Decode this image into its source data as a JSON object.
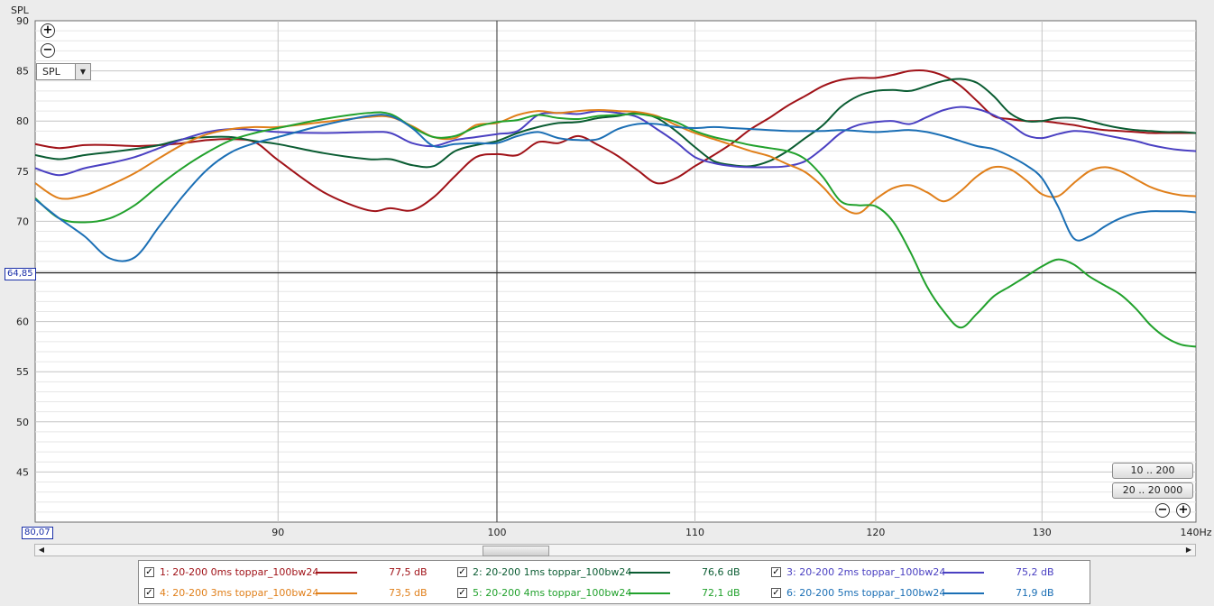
{
  "chart_data": {
    "type": "line",
    "ylabel": "SPL",
    "xlabel_unit": "Hz",
    "xlim": [
      80.07,
      140
    ],
    "ylim": [
      40,
      90
    ],
    "y_ticks": [
      45,
      50,
      55,
      60,
      65,
      70,
      75,
      80,
      85,
      90
    ],
    "y_tick_labels": [
      "45",
      "50",
      "55",
      "60",
      "",
      "70",
      "75",
      "80",
      "85",
      "90"
    ],
    "x_ticks": [
      90,
      100,
      110,
      120,
      130
    ],
    "x_end_label": "140Hz",
    "cursor_y": 64.85,
    "cursor_y_label": "64,85",
    "cursor_x": 100,
    "x_start_label": "80,07",
    "scale": "log-frequency",
    "grid": true,
    "series": [
      {
        "name": "1: 20-200 0ms  toppar_100bw24",
        "value_label": "77,5 dB",
        "color": "#a01218",
        "x": [
          80.07,
          81,
          82,
          83,
          84,
          85,
          86,
          87,
          88,
          89,
          90,
          92,
          94,
          95,
          96,
          97,
          98,
          99,
          100,
          101,
          102,
          103,
          104,
          105,
          106,
          107,
          108,
          109,
          110,
          111,
          112,
          113,
          114,
          115,
          116,
          117,
          118,
          119,
          120,
          121,
          122,
          123,
          124,
          125,
          126,
          127,
          128,
          129,
          130,
          131,
          132,
          133,
          134,
          135,
          136,
          137,
          138,
          139,
          140
        ],
        "y": [
          77.7,
          77.3,
          77.6,
          77.6,
          77.5,
          77.6,
          77.8,
          78.1,
          78.2,
          77.9,
          76.1,
          72.9,
          71.1,
          71.3,
          71.1,
          72.4,
          74.5,
          76.4,
          76.7,
          76.6,
          77.9,
          77.8,
          78.5,
          77.6,
          76.5,
          75.1,
          73.8,
          74.3,
          75.5,
          76.6,
          77.8,
          79.2,
          80.3,
          81.5,
          82.5,
          83.5,
          84.1,
          84.3,
          84.3,
          84.6,
          85.0,
          85.0,
          84.5,
          83.5,
          82.0,
          80.5,
          80.2,
          80.0,
          80.0,
          79.8,
          79.6,
          79.3,
          79.1,
          79.0,
          78.9,
          78.8,
          78.8,
          78.8,
          78.8
        ]
      },
      {
        "name": "2: 20-200 1ms  toppar_100bw24",
        "value_label": "76,6 dB",
        "color": "#0a5c32",
        "x": [
          80.07,
          81,
          82,
          83,
          84,
          85,
          86,
          87,
          88,
          89,
          90,
          92,
          94,
          95,
          96,
          97,
          98,
          99,
          100,
          101,
          102,
          103,
          104,
          105,
          106,
          107,
          108,
          109,
          110,
          111,
          112,
          113,
          114,
          115,
          116,
          117,
          118,
          119,
          120,
          121,
          122,
          123,
          124,
          125,
          126,
          127,
          128,
          129,
          130,
          131,
          132,
          133,
          134,
          135,
          136,
          137,
          138,
          139,
          140
        ],
        "y": [
          76.6,
          76.2,
          76.6,
          76.9,
          77.2,
          77.6,
          78.2,
          78.4,
          78.4,
          78.0,
          77.7,
          76.8,
          76.2,
          76.2,
          75.6,
          75.5,
          77.0,
          77.6,
          78.0,
          78.8,
          79.4,
          79.8,
          79.9,
          80.3,
          80.5,
          80.8,
          80.3,
          79.0,
          77.4,
          76.0,
          75.6,
          75.5,
          76.0,
          77.0,
          78.3,
          79.6,
          81.4,
          82.5,
          83.0,
          83.1,
          83.0,
          83.5,
          84.0,
          84.2,
          83.8,
          82.5,
          80.8,
          80.0,
          80.0,
          80.3,
          80.3,
          80.0,
          79.6,
          79.3,
          79.1,
          79.0,
          78.9,
          78.9,
          78.8
        ]
      },
      {
        "name": "3: 20-200 2ms  toppar_100bw24",
        "value_label": "75,2 dB",
        "color": "#4a40c2",
        "x": [
          80.07,
          81,
          82,
          83,
          84,
          85,
          86,
          87,
          88,
          89,
          90,
          92,
          94,
          95,
          96,
          97,
          98,
          99,
          100,
          101,
          102,
          103,
          104,
          105,
          106,
          107,
          108,
          109,
          110,
          111,
          112,
          113,
          114,
          115,
          116,
          117,
          118,
          119,
          120,
          121,
          122,
          123,
          124,
          125,
          126,
          127,
          128,
          129,
          130,
          131,
          132,
          133,
          134,
          135,
          136,
          137,
          138,
          139,
          140
        ],
        "y": [
          75.3,
          74.6,
          75.3,
          75.8,
          76.4,
          77.3,
          78.2,
          78.9,
          79.2,
          79.1,
          78.9,
          78.8,
          78.9,
          78.8,
          77.8,
          77.5,
          78.1,
          78.4,
          78.7,
          79.0,
          80.6,
          80.8,
          80.7,
          81.0,
          80.8,
          80.4,
          79.2,
          77.9,
          76.4,
          75.8,
          75.5,
          75.4,
          75.4,
          75.5,
          76.0,
          77.3,
          78.8,
          79.6,
          79.9,
          80.0,
          79.7,
          80.4,
          81.1,
          81.4,
          81.2,
          80.6,
          79.7,
          78.6,
          78.3,
          78.7,
          79.0,
          78.9,
          78.6,
          78.3,
          78.0,
          77.6,
          77.3,
          77.1,
          77.0
        ]
      },
      {
        "name": "4: 20-200 3ms  toppar_100bw24",
        "value_label": "73,5 dB",
        "color": "#e07f1a",
        "x": [
          80.07,
          81,
          82,
          83,
          84,
          85,
          86,
          87,
          88,
          89,
          90,
          92,
          94,
          95,
          96,
          97,
          98,
          99,
          100,
          101,
          102,
          103,
          104,
          105,
          106,
          107,
          108,
          109,
          110,
          111,
          112,
          113,
          114,
          115,
          116,
          117,
          118,
          119,
          120,
          121,
          122,
          123,
          124,
          125,
          126,
          127,
          128,
          129,
          130,
          131,
          132,
          133,
          134,
          135,
          136,
          137,
          138,
          139,
          140
        ],
        "y": [
          73.8,
          72.3,
          72.6,
          73.6,
          74.8,
          76.3,
          77.7,
          78.7,
          79.2,
          79.4,
          79.4,
          79.9,
          80.4,
          80.4,
          79.5,
          78.4,
          78.3,
          79.6,
          79.8,
          80.6,
          81.0,
          80.8,
          81.0,
          81.1,
          81.0,
          80.9,
          80.5,
          79.6,
          78.8,
          78.2,
          77.6,
          77.0,
          76.5,
          75.7,
          74.9,
          73.4,
          71.5,
          70.8,
          72.2,
          73.3,
          73.6,
          72.9,
          72.0,
          73.0,
          74.5,
          75.4,
          75.2,
          74.1,
          72.7,
          72.5,
          73.8,
          75.0,
          75.4,
          75.0,
          74.2,
          73.4,
          72.9,
          72.6,
          72.5
        ]
      },
      {
        "name": "5: 20-200 4ms  toppar_100bw24",
        "value_label": "72,1 dB",
        "color": "#21a12c",
        "x": [
          80.07,
          81,
          82,
          83,
          84,
          85,
          86,
          87,
          88,
          89,
          90,
          92,
          94,
          95,
          96,
          97,
          98,
          99,
          100,
          101,
          102,
          103,
          104,
          105,
          106,
          107,
          108,
          109,
          110,
          111,
          112,
          113,
          114,
          115,
          116,
          117,
          118,
          119,
          120,
          121,
          122,
          123,
          124,
          125,
          126,
          127,
          128,
          129,
          130,
          131,
          132,
          133,
          134,
          135,
          136,
          137,
          138,
          139,
          140
        ],
        "y": [
          72.3,
          70.3,
          69.9,
          70.3,
          71.6,
          73.6,
          75.4,
          76.9,
          78.1,
          78.8,
          79.3,
          80.2,
          80.8,
          80.7,
          79.4,
          78.4,
          78.5,
          79.4,
          79.9,
          80.1,
          80.6,
          80.3,
          80.2,
          80.5,
          80.6,
          80.7,
          80.4,
          79.9,
          79.0,
          78.4,
          78.0,
          77.6,
          77.3,
          77.0,
          76.2,
          74.4,
          72.0,
          71.6,
          71.5,
          70.0,
          67.0,
          63.5,
          61.0,
          59.4,
          60.8,
          62.5,
          63.5,
          64.5,
          65.5,
          66.2,
          65.7,
          64.5,
          63.6,
          62.7,
          61.3,
          59.6,
          58.4,
          57.7,
          57.5
        ]
      },
      {
        "name": "6: 20-200 5ms  toppar_100bw24",
        "value_label": "71,9 dB",
        "color": "#1b6fb5",
        "x": [
          80.07,
          81,
          82,
          83,
          84,
          85,
          86,
          87,
          88,
          89,
          90,
          92,
          94,
          95,
          96,
          97,
          98,
          99,
          100,
          101,
          102,
          103,
          104,
          105,
          106,
          107,
          108,
          109,
          110,
          111,
          112,
          113,
          114,
          115,
          116,
          117,
          118,
          119,
          120,
          121,
          122,
          123,
          124,
          125,
          126,
          127,
          128,
          129,
          130,
          131,
          132,
          133,
          134,
          135,
          136,
          137,
          138,
          139,
          140
        ],
        "y": [
          72.2,
          70.3,
          68.5,
          66.3,
          66.4,
          69.5,
          72.6,
          75.2,
          76.9,
          77.8,
          78.4,
          79.6,
          80.5,
          80.5,
          79.3,
          77.5,
          77.7,
          77.8,
          77.8,
          78.5,
          78.9,
          78.3,
          78.1,
          78.2,
          79.2,
          79.7,
          79.7,
          79.4,
          79.3,
          79.4,
          79.3,
          79.2,
          79.1,
          79.0,
          79.0,
          79.0,
          79.1,
          79.0,
          78.9,
          79.0,
          79.1,
          78.9,
          78.5,
          78.0,
          77.5,
          77.2,
          76.5,
          75.6,
          74.3,
          71.5,
          68.3,
          68.5,
          69.5,
          70.3,
          70.8,
          71.0,
          71.0,
          71.0,
          70.9
        ]
      }
    ]
  },
  "toolbar": {
    "zoom_in": "+",
    "zoom_out": "−",
    "measure_select": "SPL",
    "range_btn_1": "10 .. 200",
    "range_btn_2": "20 .. 20 000"
  },
  "legend_check": "✓"
}
